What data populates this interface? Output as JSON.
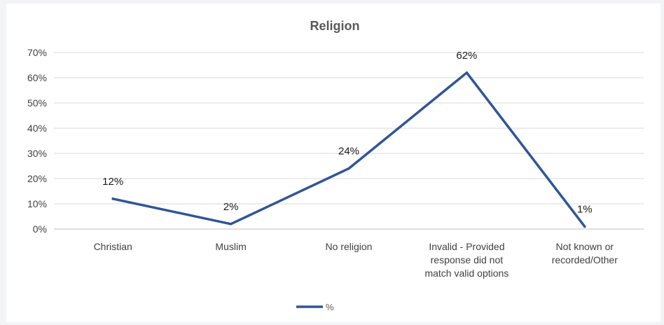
{
  "chart_data": {
    "type": "line",
    "title": "Religion",
    "categories": [
      [
        "Christian"
      ],
      [
        "Muslim"
      ],
      [
        "No religion"
      ],
      [
        "Invalid - Provided",
        "response did not",
        "match valid options"
      ],
      [
        "Not known or",
        "recorded/Other"
      ]
    ],
    "series": [
      {
        "name": "%",
        "values": [
          12,
          2,
          24,
          62,
          1
        ],
        "data_labels": [
          "12%",
          "2%",
          "24%",
          "62%",
          "1%"
        ],
        "color": "#2f5597"
      }
    ],
    "y_ticks": [
      "0%",
      "10%",
      "20%",
      "30%",
      "40%",
      "50%",
      "60%",
      "70%"
    ],
    "ylim": [
      0,
      70
    ],
    "grid": true,
    "legend_position": "bottom"
  }
}
